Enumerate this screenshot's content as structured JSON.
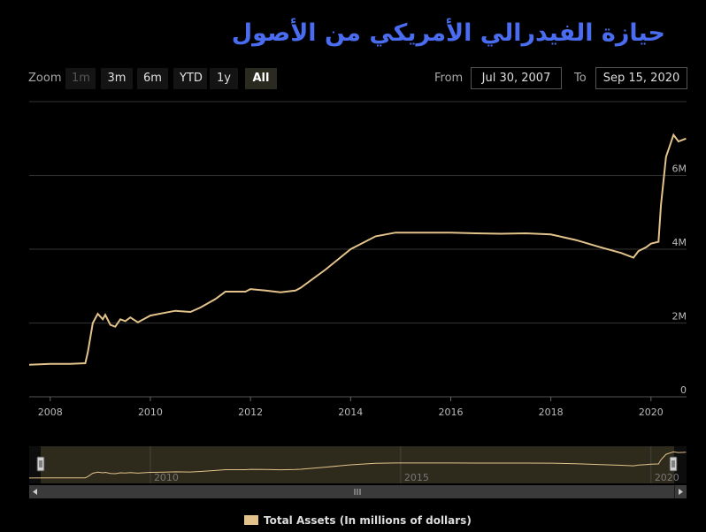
{
  "title": "حيازة الفيدرالي الأمريكي من الأصول",
  "zoom": {
    "label": "Zoom",
    "buttons": [
      {
        "label": "1m",
        "state": "disabled"
      },
      {
        "label": "3m",
        "state": "normal"
      },
      {
        "label": "6m",
        "state": "normal"
      },
      {
        "label": "YTD",
        "state": "normal"
      },
      {
        "label": "1y",
        "state": "normal"
      },
      {
        "label": "All",
        "state": "active"
      }
    ]
  },
  "range": {
    "from_label": "From",
    "from_value": "Jul 30, 2007",
    "to_label": "To",
    "to_value": "Sep 15, 2020"
  },
  "colors": {
    "line": "#e3c38b",
    "grid": "#333333",
    "navigator_fill": "#2e2a1c",
    "title": "#4a6cf0"
  },
  "chart_data": {
    "type": "line",
    "series": [
      {
        "name": "Total Assets (In millions of dollars)",
        "points": [
          [
            2007.58,
            0.87
          ],
          [
            2008.0,
            0.89
          ],
          [
            2008.4,
            0.89
          ],
          [
            2008.7,
            0.91
          ],
          [
            2008.75,
            1.2
          ],
          [
            2008.85,
            2.0
          ],
          [
            2008.95,
            2.25
          ],
          [
            2009.05,
            2.1
          ],
          [
            2009.1,
            2.22
          ],
          [
            2009.2,
            1.95
          ],
          [
            2009.3,
            1.9
          ],
          [
            2009.4,
            2.1
          ],
          [
            2009.5,
            2.05
          ],
          [
            2009.6,
            2.15
          ],
          [
            2009.75,
            2.02
          ],
          [
            2010.0,
            2.2
          ],
          [
            2010.3,
            2.28
          ],
          [
            2010.5,
            2.33
          ],
          [
            2010.8,
            2.3
          ],
          [
            2011.0,
            2.42
          ],
          [
            2011.3,
            2.65
          ],
          [
            2011.5,
            2.85
          ],
          [
            2011.9,
            2.85
          ],
          [
            2012.0,
            2.92
          ],
          [
            2012.3,
            2.88
          ],
          [
            2012.6,
            2.83
          ],
          [
            2012.9,
            2.88
          ],
          [
            2013.0,
            2.95
          ],
          [
            2013.5,
            3.45
          ],
          [
            2014.0,
            4.0
          ],
          [
            2014.5,
            4.35
          ],
          [
            2014.9,
            4.45
          ],
          [
            2015.5,
            4.45
          ],
          [
            2016.0,
            4.45
          ],
          [
            2016.5,
            4.43
          ],
          [
            2017.0,
            4.42
          ],
          [
            2017.5,
            4.43
          ],
          [
            2018.0,
            4.4
          ],
          [
            2018.5,
            4.25
          ],
          [
            2019.0,
            4.05
          ],
          [
            2019.4,
            3.9
          ],
          [
            2019.65,
            3.77
          ],
          [
            2019.75,
            3.95
          ],
          [
            2019.9,
            4.05
          ],
          [
            2020.0,
            4.15
          ],
          [
            2020.15,
            4.2
          ],
          [
            2020.2,
            5.2
          ],
          [
            2020.3,
            6.5
          ],
          [
            2020.45,
            7.1
          ],
          [
            2020.55,
            6.92
          ],
          [
            2020.7,
            7.0
          ]
        ]
      }
    ],
    "x_ticks": [
      "2008",
      "2010",
      "2012",
      "2014",
      "2016",
      "2018",
      "2020"
    ],
    "y_ticks": [
      "0",
      "2M",
      "4M",
      "6M"
    ],
    "xlim": [
      2007.58,
      2020.71
    ],
    "ylim": [
      0,
      8
    ],
    "navigator_ticks": [
      "2010",
      "2015",
      "2020"
    ],
    "legend": "Total Assets (In millions of dollars)",
    "legend_position": "bottom-center",
    "grid": true
  }
}
